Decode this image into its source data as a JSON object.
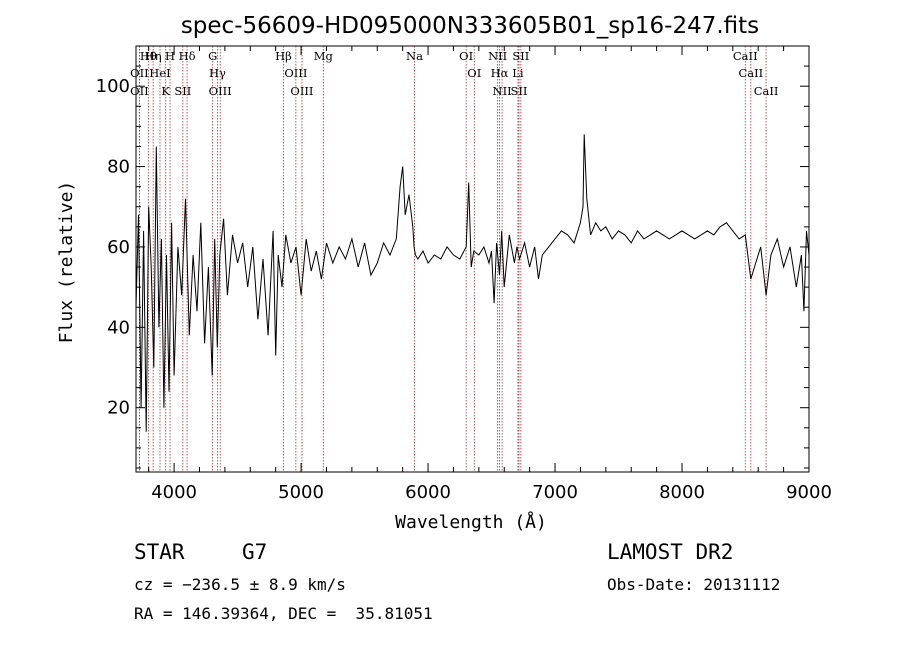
{
  "chart_data": {
    "type": "line",
    "title": "spec-56609-HD095000N333605B01_sp16-247.fits",
    "xlabel": "Wavelength (Å)",
    "ylabel": "Flux (relative)",
    "xlim": [
      3700,
      9000
    ],
    "ylim": [
      4,
      110
    ],
    "xticks": [
      4000,
      5000,
      6000,
      7000,
      8000,
      9000
    ],
    "yticks": [
      20,
      40,
      60,
      80,
      100
    ],
    "series": [
      {
        "name": "flux",
        "x": [
          3700,
          3720,
          3740,
          3760,
          3780,
          3800,
          3820,
          3840,
          3860,
          3880,
          3900,
          3920,
          3940,
          3960,
          3980,
          4000,
          4030,
          4060,
          4090,
          4120,
          4150,
          4180,
          4210,
          4240,
          4270,
          4300,
          4320,
          4340,
          4360,
          4390,
          4420,
          4460,
          4500,
          4540,
          4580,
          4620,
          4660,
          4700,
          4740,
          4780,
          4800,
          4820,
          4850,
          4880,
          4920,
          4960,
          5000,
          5040,
          5080,
          5120,
          5160,
          5200,
          5250,
          5300,
          5350,
          5400,
          5450,
          5500,
          5550,
          5600,
          5650,
          5700,
          5750,
          5780,
          5800,
          5820,
          5850,
          5880,
          5890,
          5900,
          5920,
          5960,
          6000,
          6050,
          6100,
          6150,
          6200,
          6250,
          6300,
          6320,
          6340,
          6360,
          6400,
          6440,
          6480,
          6500,
          6520,
          6540,
          6563,
          6580,
          6600,
          6640,
          6680,
          6700,
          6720,
          6760,
          6800,
          6840,
          6870,
          6900,
          6950,
          7000,
          7050,
          7100,
          7150,
          7200,
          7220,
          7230,
          7250,
          7280,
          7320,
          7360,
          7400,
          7450,
          7500,
          7550,
          7600,
          7650,
          7700,
          7750,
          7800,
          7850,
          7900,
          7950,
          8000,
          8050,
          8100,
          8150,
          8200,
          8250,
          8300,
          8350,
          8400,
          8450,
          8498,
          8542,
          8580,
          8620,
          8662,
          8700,
          8750,
          8800,
          8850,
          8900,
          8940,
          8960,
          8980,
          9000
        ],
        "values": [
          45,
          68,
          20,
          64,
          14,
          70,
          55,
          30,
          85,
          40,
          62,
          20,
          58,
          24,
          66,
          28,
          60,
          48,
          72,
          38,
          58,
          44,
          66,
          36,
          55,
          28,
          62,
          35,
          58,
          67,
          48,
          63,
          56,
          61,
          50,
          60,
          42,
          57,
          38,
          64,
          33,
          58,
          50,
          63,
          56,
          60,
          48,
          62,
          54,
          59,
          52,
          61,
          56,
          60,
          57,
          62,
          55,
          61,
          53,
          56,
          61,
          58,
          62,
          75,
          80,
          68,
          73,
          65,
          60,
          58,
          57,
          59,
          56,
          58,
          57,
          60,
          58,
          57,
          60,
          76,
          55,
          59,
          58,
          60,
          56,
          59,
          46,
          61,
          53,
          64,
          50,
          63,
          56,
          60,
          57,
          61,
          55,
          60,
          52,
          58,
          60,
          62,
          64,
          63,
          61,
          66,
          70,
          88,
          72,
          63,
          66,
          64,
          65,
          62,
          64,
          63,
          61,
          64,
          62,
          63,
          64,
          63,
          62,
          63,
          64,
          63,
          62,
          63,
          64,
          63,
          65,
          66,
          64,
          62,
          63,
          52,
          56,
          60,
          48,
          58,
          62,
          55,
          60,
          50,
          58,
          44,
          64,
          58
        ]
      }
    ],
    "spectral_lines": [
      {
        "label": "Hθ",
        "x": 3797
      },
      {
        "label": "OII",
        "x": 3727
      },
      {
        "label": "OII",
        "x": 3727
      },
      {
        "label": "Hη",
        "x": 3835
      },
      {
        "label": "HeI",
        "x": 3889
      },
      {
        "label": "K",
        "x": 3934
      },
      {
        "label": "H",
        "x": 3968
      },
      {
        "label": "SII",
        "x": 4069
      },
      {
        "label": "Hδ",
        "x": 4102
      },
      {
        "label": "G",
        "x": 4304
      },
      {
        "label": "Hγ",
        "x": 4341
      },
      {
        "label": "OIII",
        "x": 4363
      },
      {
        "label": "Hβ",
        "x": 4861
      },
      {
        "label": "OIII",
        "x": 4959
      },
      {
        "label": "OIII",
        "x": 5007
      },
      {
        "label": "Mg",
        "x": 5175
      },
      {
        "label": "Na",
        "x": 5893
      },
      {
        "label": "OI",
        "x": 6300
      },
      {
        "label": "OI",
        "x": 6364
      },
      {
        "label": "NII",
        "x": 6548
      },
      {
        "label": "Hα",
        "x": 6563
      },
      {
        "label": "NII",
        "x": 6583
      },
      {
        "label": "Li",
        "x": 6708
      },
      {
        "label": "SII",
        "x": 6716
      },
      {
        "label": "SII",
        "x": 6731
      },
      {
        "label": "CaII",
        "x": 8498
      },
      {
        "label": "CaII",
        "x": 8542
      },
      {
        "label": "CaII",
        "x": 8662
      }
    ]
  },
  "info": {
    "object_class": "STAR",
    "subclass": "G7",
    "survey": "LAMOST DR2",
    "cz": "cz = −236.5 ± 8.9 km/s",
    "obs_date": "Obs-Date: 20131112",
    "coords": "RA = 146.39364, DEC =  35.81051"
  },
  "colors": {
    "spectrum": "#000000",
    "line_marker": "#b03030",
    "axes": "#000000"
  }
}
